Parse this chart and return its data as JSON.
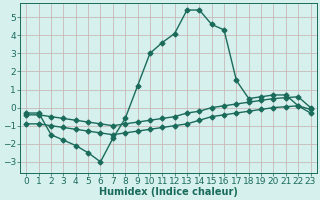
{
  "xlabel": "Humidex (Indice chaleur)",
  "background_color": "#d6f0ee",
  "grid_color": "#c8b8b8",
  "line_color": "#1a6b5a",
  "xlim": [
    -0.5,
    23.5
  ],
  "ylim": [
    -3.6,
    5.8
  ],
  "yticks": [
    -3,
    -2,
    -1,
    0,
    1,
    2,
    3,
    4,
    5
  ],
  "xticks": [
    0,
    1,
    2,
    3,
    4,
    5,
    6,
    7,
    8,
    9,
    10,
    11,
    12,
    13,
    14,
    15,
    16,
    17,
    18,
    19,
    20,
    21,
    22,
    23
  ],
  "curve1_x": [
    0,
    1,
    2,
    3,
    4,
    5,
    6,
    7,
    8,
    9,
    10,
    11,
    12,
    13,
    14,
    15,
    16,
    17,
    18,
    19,
    20,
    21,
    22,
    23
  ],
  "curve1_y": [
    -0.3,
    -0.3,
    -1.5,
    -1.8,
    -2.1,
    -2.5,
    -3.0,
    -1.7,
    -0.6,
    1.2,
    3.0,
    3.6,
    4.1,
    5.4,
    5.4,
    4.6,
    4.3,
    1.5,
    0.5,
    0.6,
    0.7,
    0.7,
    0.1,
    -0.1
  ],
  "curve2_x": [
    0,
    1,
    2,
    3,
    4,
    5,
    6,
    7,
    8,
    9,
    10,
    11,
    12,
    13,
    14,
    15,
    16,
    17,
    18,
    19,
    20,
    21,
    22,
    23
  ],
  "curve2_y": [
    -0.4,
    -0.4,
    -0.5,
    -0.6,
    -0.7,
    -0.8,
    -0.9,
    -1.0,
    -0.9,
    -0.8,
    -0.7,
    -0.6,
    -0.5,
    -0.3,
    -0.2,
    0.0,
    0.1,
    0.2,
    0.3,
    0.4,
    0.5,
    0.55,
    0.6,
    0.0
  ],
  "curve3_x": [
    0,
    1,
    2,
    3,
    4,
    5,
    6,
    7,
    8,
    9,
    10,
    11,
    12,
    13,
    14,
    15,
    16,
    17,
    18,
    19,
    20,
    21,
    22,
    23
  ],
  "curve3_y": [
    -0.9,
    -0.9,
    -1.0,
    -1.1,
    -1.2,
    -1.3,
    -1.4,
    -1.5,
    -1.4,
    -1.3,
    -1.2,
    -1.1,
    -1.0,
    -0.9,
    -0.7,
    -0.5,
    -0.4,
    -0.3,
    -0.2,
    -0.1,
    0.0,
    0.05,
    0.1,
    -0.3
  ],
  "marker": "D",
  "marker_size": 2.5,
  "line_width": 1.0,
  "font_size_label": 7,
  "font_size_tick": 6.5
}
